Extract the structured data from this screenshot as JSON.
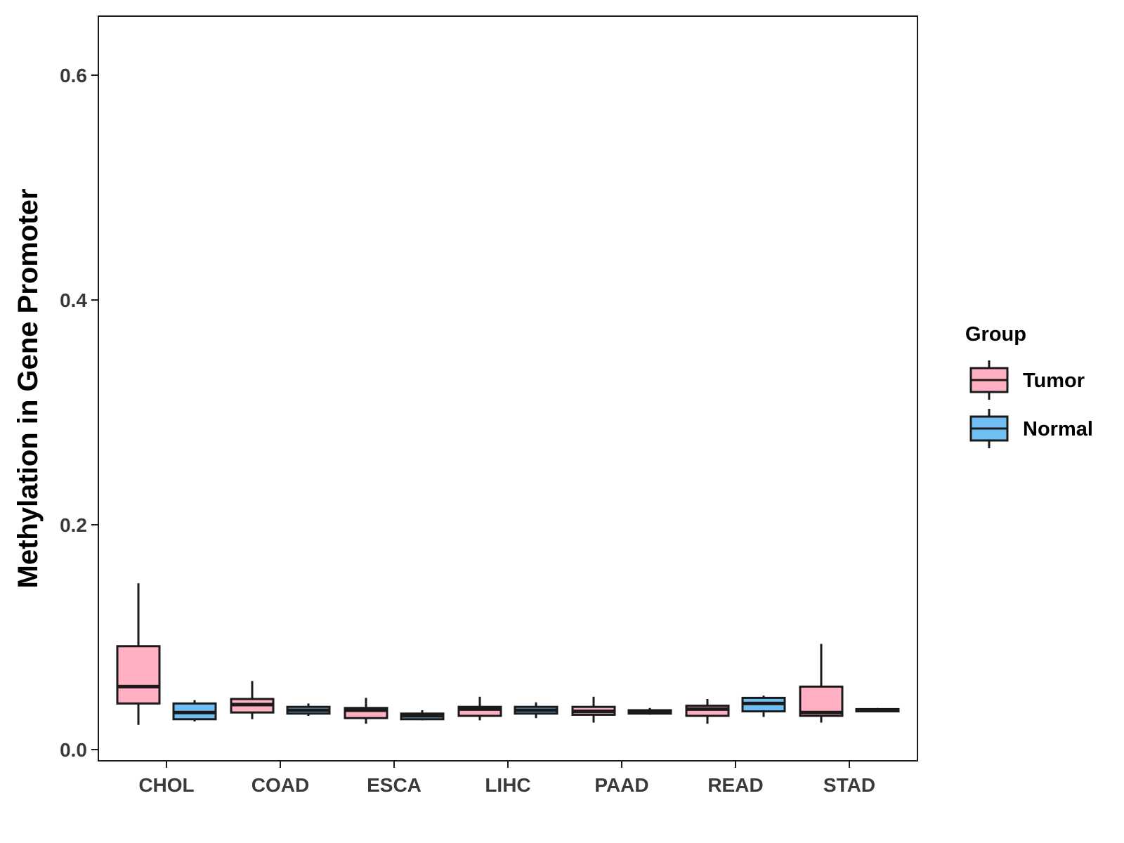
{
  "chart_data": {
    "type": "boxplot",
    "title": "",
    "xlabel": "",
    "ylabel": "Methylation in Gene Promoter",
    "ylim": [
      -0.008,
      0.655
    ],
    "yticks": [
      0.0,
      0.2,
      0.4,
      0.6
    ],
    "ytick_labels": [
      "0.0",
      "0.2",
      "0.4",
      "0.6"
    ],
    "grid": false,
    "categories": [
      "CHOL",
      "COAD",
      "ESCA",
      "LIHC",
      "PAAD",
      "READ",
      "STAD"
    ],
    "legend": {
      "title": "Group",
      "position": "right",
      "entries": [
        {
          "name": "Tumor",
          "color": "#ffb0c2"
        },
        {
          "name": "Normal",
          "color": "#6fbff5"
        }
      ]
    },
    "series": [
      {
        "name": "Tumor",
        "color": "#ffb0c2",
        "boxes": [
          {
            "min": 0.022,
            "q1": 0.041,
            "median": 0.056,
            "q3": 0.092,
            "max": 0.148
          },
          {
            "min": 0.027,
            "q1": 0.033,
            "median": 0.04,
            "q3": 0.045,
            "max": 0.061
          },
          {
            "min": 0.023,
            "q1": 0.028,
            "median": 0.035,
            "q3": 0.037,
            "max": 0.046
          },
          {
            "min": 0.026,
            "q1": 0.03,
            "median": 0.036,
            "q3": 0.038,
            "max": 0.047
          },
          {
            "min": 0.024,
            "q1": 0.031,
            "median": 0.034,
            "q3": 0.038,
            "max": 0.047
          },
          {
            "min": 0.023,
            "q1": 0.03,
            "median": 0.036,
            "q3": 0.039,
            "max": 0.045
          },
          {
            "min": 0.024,
            "q1": 0.03,
            "median": 0.033,
            "q3": 0.056,
            "max": 0.094
          }
        ]
      },
      {
        "name": "Normal",
        "color": "#6fbff5",
        "boxes": [
          {
            "min": 0.025,
            "q1": 0.027,
            "median": 0.033,
            "q3": 0.041,
            "max": 0.044
          },
          {
            "min": 0.03,
            "q1": 0.032,
            "median": 0.035,
            "q3": 0.038,
            "max": 0.041
          },
          {
            "min": 0.026,
            "q1": 0.027,
            "median": 0.03,
            "q3": 0.032,
            "max": 0.035
          },
          {
            "min": 0.028,
            "q1": 0.032,
            "median": 0.035,
            "q3": 0.038,
            "max": 0.042
          },
          {
            "min": 0.031,
            "q1": 0.032,
            "median": 0.034,
            "q3": 0.035,
            "max": 0.037
          },
          {
            "min": 0.029,
            "q1": 0.034,
            "median": 0.041,
            "q3": 0.046,
            "max": 0.048
          },
          {
            "min": 0.034,
            "q1": 0.034,
            "median": 0.035,
            "q3": 0.036,
            "max": 0.037
          }
        ]
      }
    ]
  }
}
